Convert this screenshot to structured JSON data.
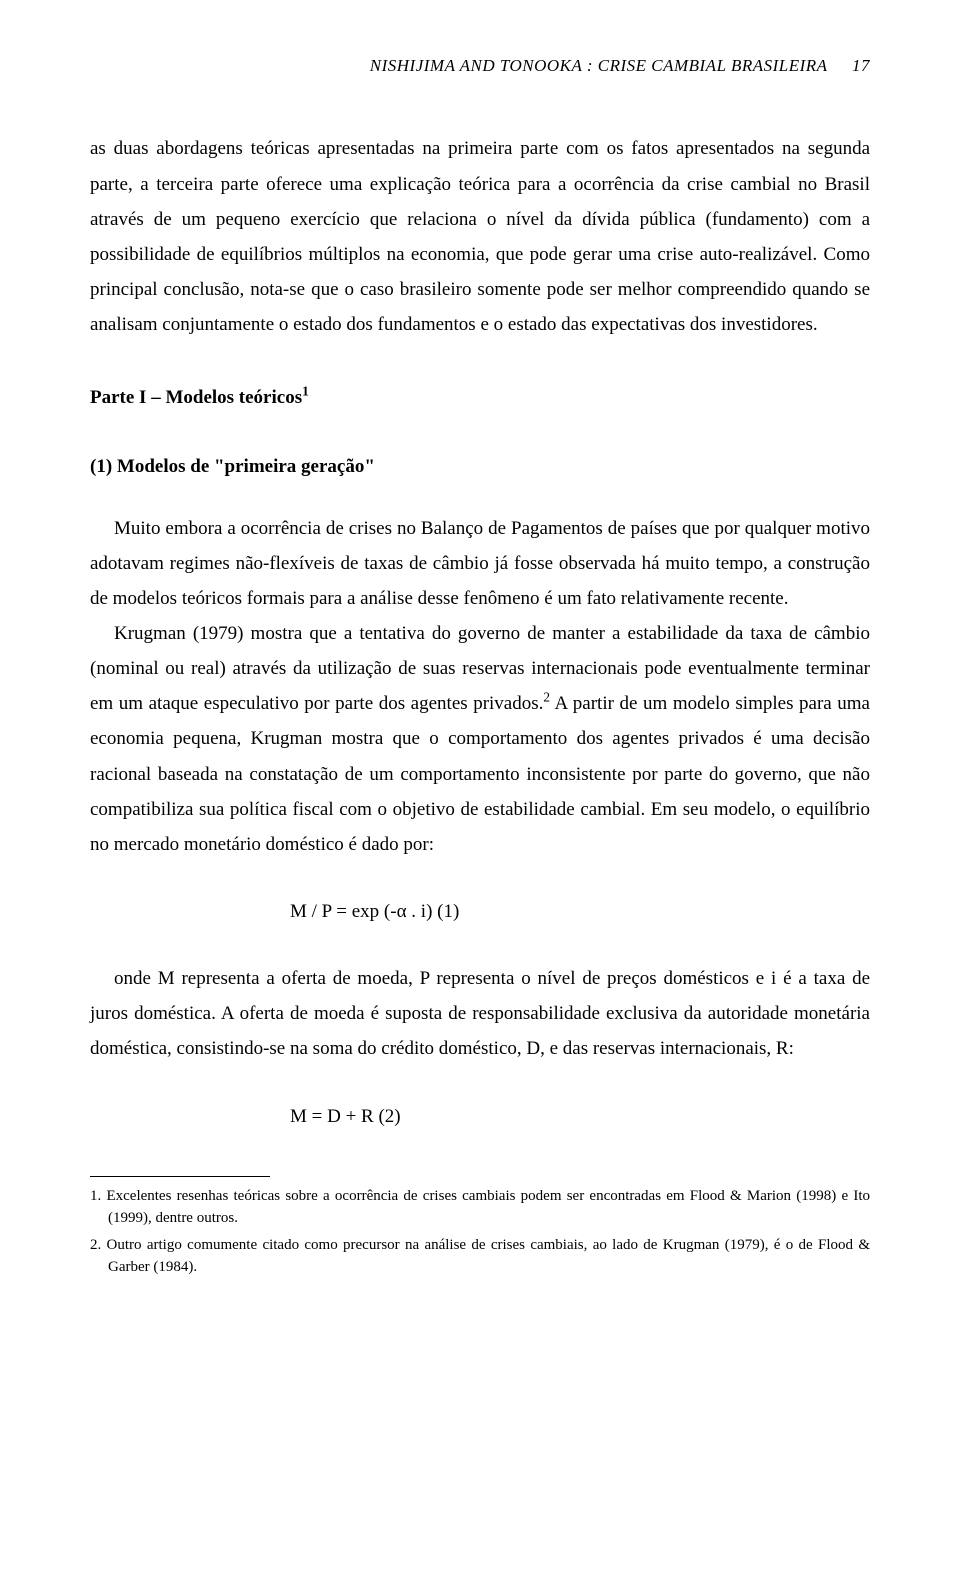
{
  "header": {
    "running_title": "NISHIJIMA AND TONOOKA : CRISE CAMBIAL BRASILEIRA",
    "page_number": "17"
  },
  "paragraphs": {
    "p1": "as duas abordagens teóricas apresentadas na primeira parte com os fatos apresentados na segunda parte, a terceira parte oferece uma explicação teórica para a ocorrência da crise cambial no Brasil através de um pequeno exercício que relaciona o nível da dívida pública (fundamento) com a possibilidade de equilíbrios múltiplos na economia, que pode gerar uma crise auto-realizável. Como principal conclusão, nota-se que o caso brasileiro somente pode ser melhor compreendido quando se analisam conjuntamente o estado dos fundamentos e o estado das expectativas dos investidores.",
    "section_heading_pre": "Parte I – Modelos teóricos",
    "section_heading_sup": "1",
    "subsection_heading": "(1) Modelos de \"primeira geração\"",
    "p2": "Muito embora a ocorrência de crises no Balanço de Pagamentos de países que por qualquer motivo adotavam regimes não-flexíveis de taxas de câmbio já fosse observada há muito tempo, a construção de modelos teóricos formais para a análise desse fenômeno é um fato relativamente recente.",
    "p3_pre": "Krugman (1979) mostra que a tentativa do governo de manter a estabilidade da taxa de câmbio (nominal ou real) através da utilização de suas reservas internacionais pode eventualmente terminar em um ataque especulativo por parte dos agentes privados.",
    "p3_sup": "2",
    "p3_post": " A partir de um modelo simples para uma economia pequena, Krugman mostra que o comportamento dos agentes privados é uma decisão racional baseada na constatação de um comportamento inconsistente por parte do governo, que não compatibiliza sua política fiscal com o objetivo de estabilidade cambial. Em seu modelo, o equilíbrio no mercado monetário doméstico é dado por:",
    "p4": "onde M representa a oferta de moeda, P representa o nível de preços domésticos e i é a taxa de juros doméstica. A oferta de moeda é suposta de responsabilidade exclusiva da autoridade monetária doméstica, consistindo-se na soma do crédito doméstico, D, e das reservas internacionais, R:"
  },
  "equations": {
    "eq1": "M / P = exp (-α . i)              (1)",
    "eq2": "M = D + R                           (2)"
  },
  "footnotes": {
    "fn1": "1. Excelentes resenhas teóricas sobre a ocorrência de crises cambiais podem ser encontradas em Flood & Marion (1998) e Ito (1999), dentre outros.",
    "fn2": "2. Outro artigo comumente citado como precursor na análise de crises cambiais, ao lado de Krugman (1979), é o de Flood & Garber (1984)."
  }
}
